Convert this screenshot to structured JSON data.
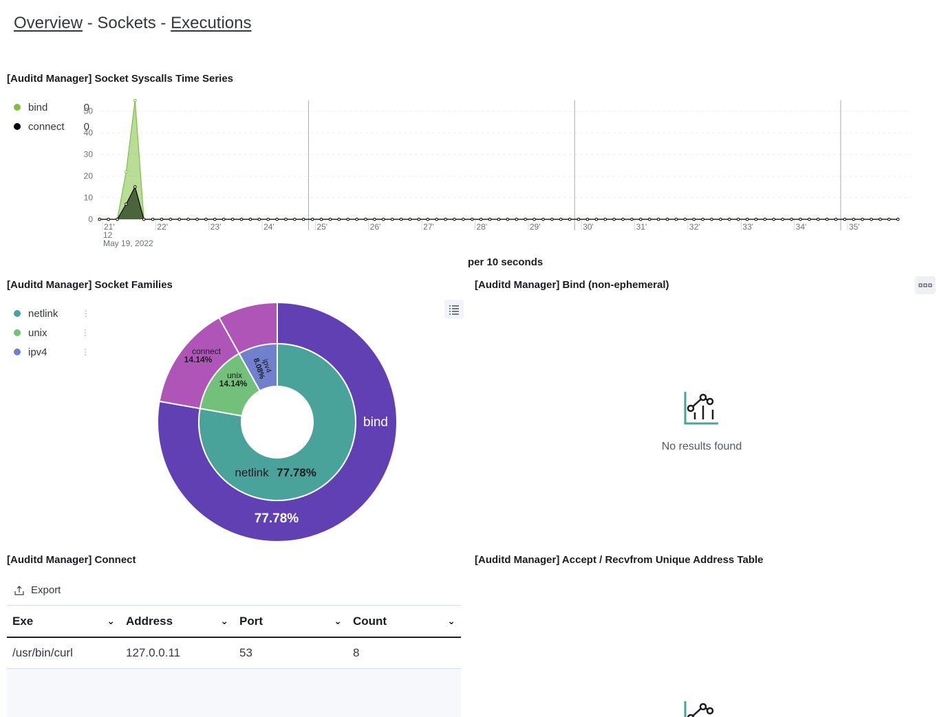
{
  "nav": {
    "overview": "Overview",
    "sep1": "-",
    "sockets": "Sockets",
    "sep2": "-",
    "executions": "Executions"
  },
  "timeseries": {
    "title": "[Auditd Manager] Socket Syscalls Time Series",
    "legend": [
      {
        "label": "bind",
        "value": "0",
        "color": "#7fbf3f"
      },
      {
        "label": "connect",
        "value": "0",
        "color": "#000000"
      }
    ],
    "x_footer": "per 10 seconds",
    "date_line1": "12",
    "date_line2": "May 19, 2022"
  },
  "chart_data": [
    {
      "type": "area",
      "title": "[Auditd Manager] Socket Syscalls Time Series",
      "xlabel": "per 10 seconds",
      "ylabel": "",
      "ylim": [
        0,
        55
      ],
      "yticks": [
        0,
        10,
        20,
        30,
        40,
        50
      ],
      "x_ticks": [
        "21'",
        "22'",
        "23'",
        "24'",
        "25'",
        "26'",
        "27'",
        "28'",
        "29'",
        "30'",
        "31'",
        "32'",
        "33'",
        "34'",
        "35'"
      ],
      "x_start_minute": 20.97,
      "x_step_minutes": 0.1667,
      "series": [
        {
          "name": "bind",
          "color": "#7fbf3f",
          "values": [
            0,
            0,
            0,
            22,
            55,
            0,
            0,
            0,
            0,
            0,
            0,
            0,
            0,
            0,
            0,
            0,
            0,
            0,
            0,
            0,
            0,
            0,
            0,
            0,
            0,
            0,
            0,
            0,
            0,
            0,
            0,
            0,
            0,
            0,
            0,
            0,
            0,
            0,
            0,
            0,
            0,
            0,
            0,
            0,
            0,
            0,
            0,
            0,
            0,
            0,
            0,
            0,
            0,
            0,
            0,
            0,
            0,
            0,
            0,
            0,
            0,
            0,
            0,
            0,
            0,
            0,
            0,
            0,
            0,
            0,
            0,
            0,
            0,
            0,
            0,
            0,
            0,
            0,
            0,
            0,
            0,
            0,
            0,
            0,
            0,
            0,
            0,
            0,
            0,
            0,
            0
          ]
        },
        {
          "name": "connect",
          "color": "#000000",
          "values": [
            0,
            0,
            0,
            7,
            15,
            0,
            0,
            0,
            0,
            0,
            0,
            0,
            0,
            0,
            0,
            0,
            0,
            0,
            0,
            0,
            0,
            0,
            0,
            0,
            0,
            0,
            0,
            0,
            0,
            0,
            0,
            0,
            0,
            0,
            0,
            0,
            0,
            0,
            0,
            0,
            0,
            0,
            0,
            0,
            0,
            0,
            0,
            0,
            0,
            0,
            0,
            0,
            0,
            0,
            0,
            0,
            0,
            0,
            0,
            0,
            0,
            0,
            0,
            0,
            0,
            0,
            0,
            0,
            0,
            0,
            0,
            0,
            0,
            0,
            0,
            0,
            0,
            0,
            0,
            0,
            0,
            0,
            0,
            0,
            0,
            0,
            0,
            0,
            0,
            0,
            0
          ]
        }
      ],
      "legend_position": "left",
      "grid": true
    },
    {
      "type": "pie",
      "title": "[Auditd Manager] Socket Families",
      "inner": [
        {
          "label": "netlink",
          "value": 77.78,
          "color": "#4aa39a",
          "text": "77.78%"
        },
        {
          "label": "unix",
          "value": 14.14,
          "color": "#72c07a",
          "text": "14.14%"
        },
        {
          "label": "ipv4",
          "value": 8.08,
          "color": "#7180cc",
          "text": "8.08%"
        }
      ],
      "outer": [
        {
          "label": "bind",
          "value": 77.78,
          "color": "#6040b3",
          "text": "77.78%"
        },
        {
          "label": "connect",
          "value": 14.14,
          "color": "#b055b8",
          "text": "14.14%"
        },
        {
          "label": "",
          "value": 8.08,
          "color": "#b055b8",
          "text": ""
        }
      ]
    }
  ],
  "families": {
    "title": "[Auditd Manager] Socket Families",
    "legend": [
      {
        "label": "netlink",
        "color": "#4aa39a"
      },
      {
        "label": "unix",
        "color": "#72c07a"
      },
      {
        "label": "ipv4",
        "color": "#7180cc"
      }
    ],
    "pie_labels": {
      "bind": "bind",
      "bind_pct": "77.78%",
      "netlink": "netlink",
      "netlink_pct": "77.78%",
      "unix": "unix",
      "unix_pct": "14.14%",
      "ipv4": "ipv4",
      "ipv4_pct": "8.08%",
      "connect": "connect",
      "connect_pct": "14.14%"
    }
  },
  "bind_panel": {
    "title": "[Auditd Manager] Bind (non-ephemeral)",
    "empty": "No results found"
  },
  "connect_panel": {
    "title": "[Auditd Manager] Connect",
    "export": "Export",
    "columns": [
      "Exe",
      "Address",
      "Port",
      "Count"
    ],
    "rows": [
      [
        "/usr/bin/curl",
        "127.0.0.11",
        "53",
        "8"
      ]
    ]
  },
  "accept_panel": {
    "title": "[Auditd Manager] Accept / Recvfrom Unique Address Table"
  }
}
